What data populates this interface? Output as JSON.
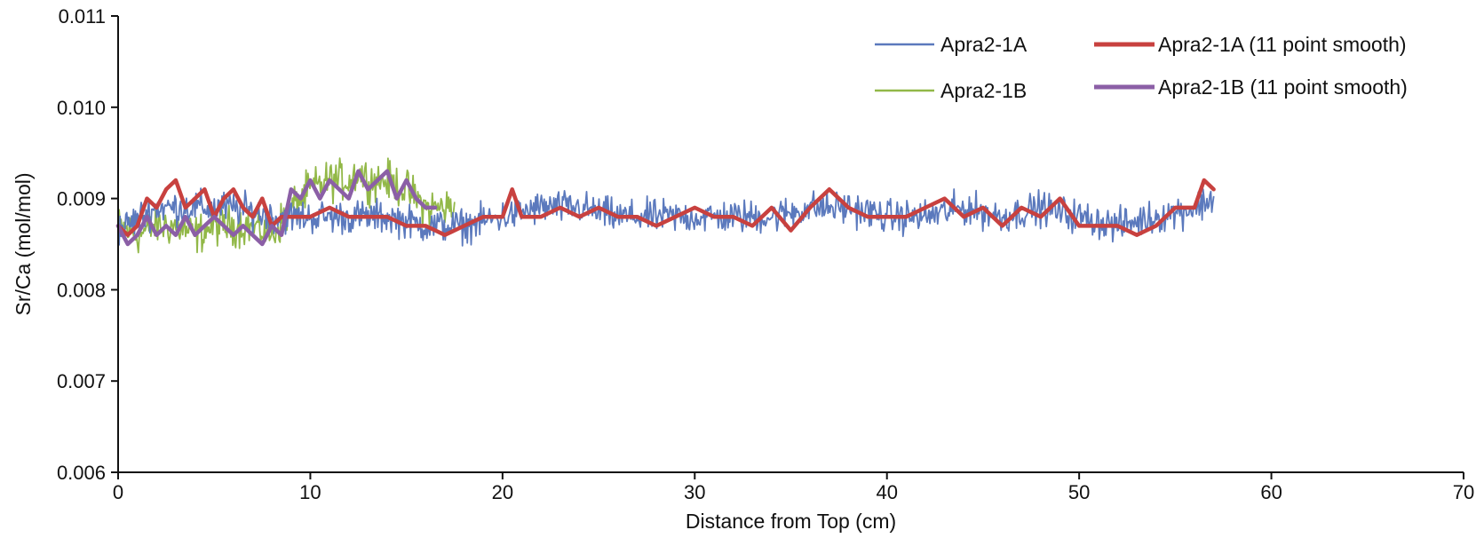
{
  "chart_data": {
    "type": "line",
    "title": "",
    "xlabel": "Distance from Top (cm)",
    "ylabel": "Sr/Ca (mol/mol)",
    "xlim": [
      0,
      70
    ],
    "ylim": [
      0.006,
      0.011
    ],
    "xticks": [
      0,
      10,
      20,
      30,
      40,
      50,
      60,
      70
    ],
    "xtick_labels": [
      "0",
      "10",
      "20",
      "30",
      "40",
      "50",
      "60",
      "70"
    ],
    "yticks": [
      0.006,
      0.007,
      0.008,
      0.009,
      0.01,
      0.011
    ],
    "ytick_labels": [
      "0.006",
      "0.007",
      "0.008",
      "0.009",
      "0.010",
      "0.011"
    ],
    "grid": false,
    "legend_position": "top-right",
    "series": [
      {
        "name": "Apra2-1A",
        "color": "#5b79bd",
        "style": "raw",
        "x_range": [
          0,
          57
        ],
        "n_points": 1140,
        "x": [
          0,
          2,
          4,
          6,
          8,
          10,
          12,
          14,
          16,
          18,
          20,
          22,
          24,
          26,
          28,
          30,
          32,
          34,
          36,
          38,
          40,
          42,
          44,
          46,
          48,
          50,
          52,
          54,
          56,
          57
        ],
        "y": [
          0.00865,
          0.0089,
          0.0089,
          0.0089,
          0.0088,
          0.0088,
          0.0088,
          0.0088,
          0.0087,
          0.0087,
          0.0088,
          0.0089,
          0.0089,
          0.0088,
          0.0088,
          0.0088,
          0.0088,
          0.0088,
          0.0089,
          0.0089,
          0.0088,
          0.0088,
          0.0089,
          0.0088,
          0.0089,
          0.0088,
          0.0087,
          0.0088,
          0.0089,
          0.009
        ],
        "noise_amplitude": 0.00027
      },
      {
        "name": "Apra2-1A (11 point smooth)",
        "color": "#c8413f",
        "style": "smooth",
        "x": [
          0,
          0.5,
          1,
          1.5,
          2,
          2.5,
          3,
          3.5,
          4,
          4.5,
          5,
          5.5,
          6,
          6.5,
          7,
          7.5,
          8,
          8.5,
          9,
          10,
          11,
          12,
          13,
          14,
          15,
          16,
          17,
          18,
          19,
          20,
          20.5,
          21,
          22,
          23,
          24,
          25,
          26,
          27,
          28,
          29,
          30,
          31,
          32,
          33,
          34,
          35,
          36,
          37,
          38,
          39,
          40,
          41,
          42,
          43,
          44,
          45,
          46,
          47,
          48,
          49,
          50,
          51,
          52,
          53,
          54,
          55,
          56,
          56.5,
          57
        ],
        "y": [
          0.0087,
          0.0086,
          0.0087,
          0.009,
          0.0089,
          0.0091,
          0.0092,
          0.0089,
          0.009,
          0.0091,
          0.0088,
          0.009,
          0.0091,
          0.0089,
          0.0088,
          0.009,
          0.0087,
          0.0088,
          0.0088,
          0.0088,
          0.0089,
          0.0088,
          0.0088,
          0.0088,
          0.0087,
          0.0087,
          0.0086,
          0.0087,
          0.0088,
          0.0088,
          0.0091,
          0.0088,
          0.0088,
          0.0089,
          0.0088,
          0.0089,
          0.0088,
          0.0088,
          0.0087,
          0.0088,
          0.0089,
          0.0088,
          0.0088,
          0.0087,
          0.0089,
          0.00865,
          0.0089,
          0.0091,
          0.0089,
          0.0088,
          0.0088,
          0.0088,
          0.0089,
          0.009,
          0.0088,
          0.0089,
          0.0087,
          0.0089,
          0.0088,
          0.009,
          0.0087,
          0.0087,
          0.0087,
          0.0086,
          0.0087,
          0.0089,
          0.0089,
          0.0092,
          0.0091
        ]
      },
      {
        "name": "Apra2-1B",
        "color": "#92b848",
        "style": "raw",
        "x_range": [
          0,
          17.5
        ],
        "n_points": 350,
        "x": [
          0,
          1,
          2,
          3,
          4,
          5,
          6,
          7,
          8,
          9,
          10,
          11,
          12,
          12.5,
          13,
          14,
          15,
          16,
          17,
          17.5
        ],
        "y": [
          0.0087,
          0.0086,
          0.0087,
          0.0087,
          0.0086,
          0.0087,
          0.0087,
          0.0087,
          0.0086,
          0.0089,
          0.0091,
          0.0092,
          0.0092,
          0.0093,
          0.0092,
          0.0092,
          0.0091,
          0.0089,
          0.0089,
          0.0089
        ],
        "noise_amplitude": 0.00032
      },
      {
        "name": "Apra2-1B (11 point smooth)",
        "color": "#8b5fa6",
        "style": "smooth",
        "x": [
          0,
          0.5,
          1,
          1.5,
          2,
          2.5,
          3,
          3.5,
          4,
          4.5,
          5,
          5.5,
          6,
          6.5,
          7,
          7.5,
          8,
          8.5,
          9,
          9.5,
          10,
          10.5,
          11,
          11.5,
          12,
          12.5,
          13,
          13.5,
          14,
          14.5,
          15,
          15.5,
          16,
          16.5
        ],
        "y": [
          0.0087,
          0.0085,
          0.0086,
          0.0088,
          0.0086,
          0.0087,
          0.0086,
          0.0088,
          0.0086,
          0.0087,
          0.0088,
          0.0087,
          0.0086,
          0.0087,
          0.0086,
          0.0085,
          0.0087,
          0.0086,
          0.0091,
          0.009,
          0.0092,
          0.009,
          0.0092,
          0.0091,
          0.009,
          0.0093,
          0.0091,
          0.0092,
          0.0093,
          0.009,
          0.0092,
          0.009,
          0.0089,
          0.0089
        ]
      }
    ]
  }
}
